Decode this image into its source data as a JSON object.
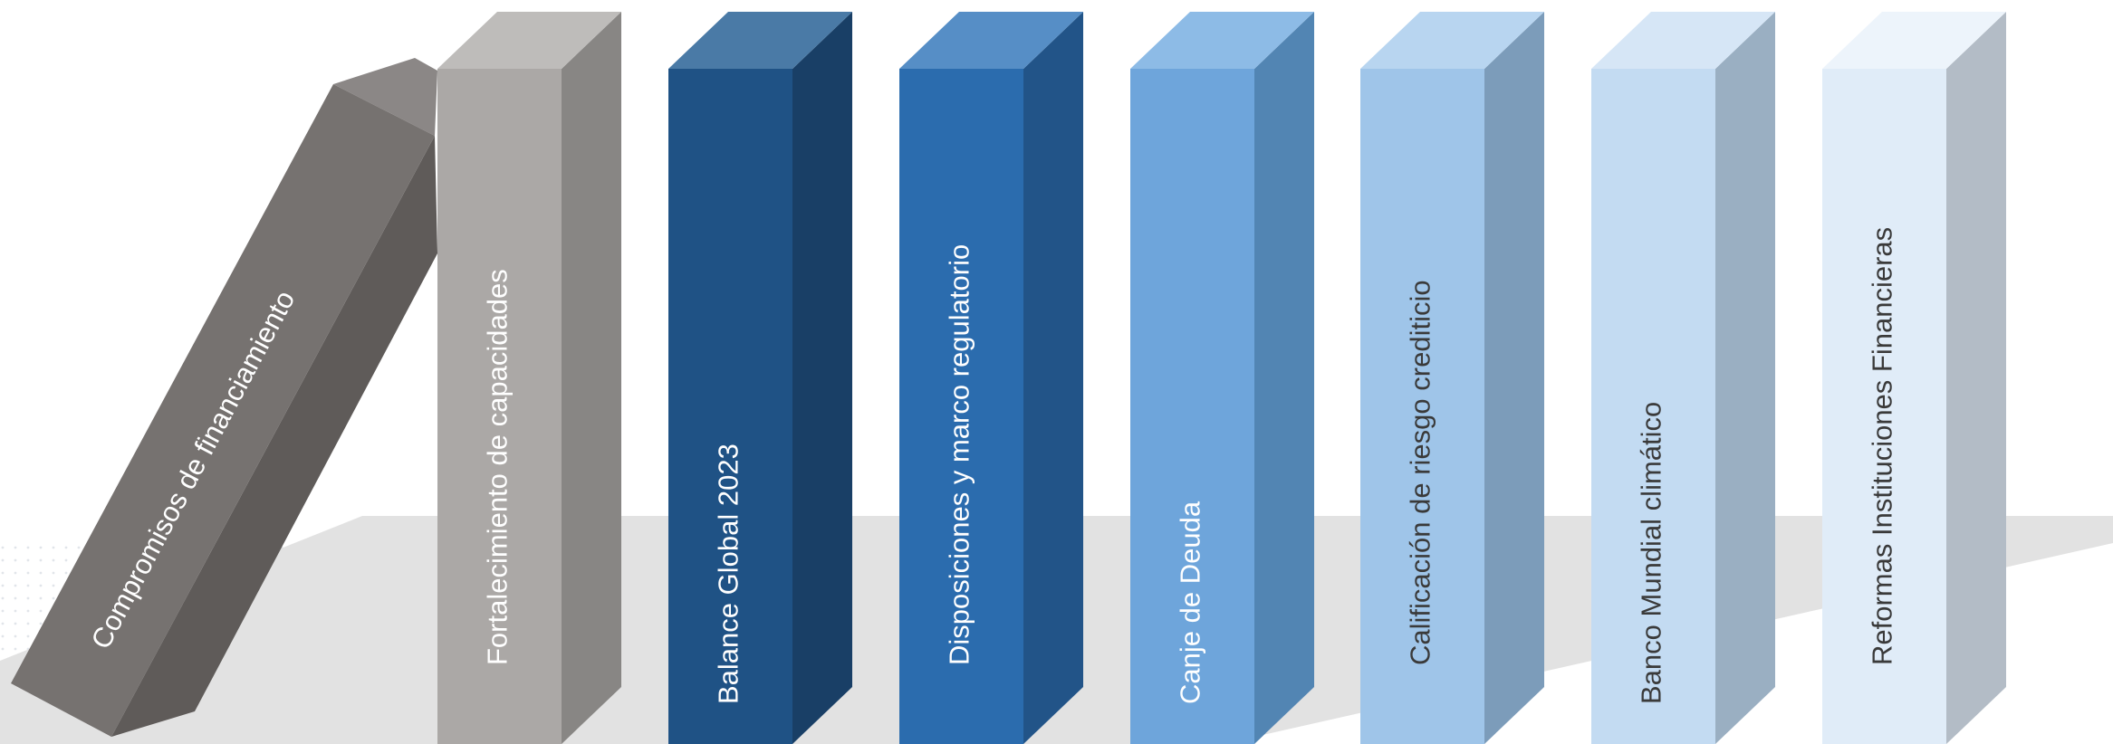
{
  "dominoes": [
    {
      "label": "Compromisos de financiamiento",
      "front": "#767270",
      "side": "#5f5b59",
      "top": "#8b8786",
      "text_color": "#ffffff"
    },
    {
      "label": "Fortalecimiento de capacidades",
      "front": "#aba8a6",
      "side": "#888684",
      "top": "#bebcba",
      "text_color": "#ffffff"
    },
    {
      "label": "Balance Global 2023",
      "front": "#1f5285",
      "side": "#193f66",
      "top": "#4a7aa6",
      "text_color": "#ffffff"
    },
    {
      "label": "Disposiciones y marco regulatorio",
      "front": "#2b6cae",
      "side": "#225488",
      "top": "#568ec6",
      "text_color": "#ffffff"
    },
    {
      "label": "Canje de Deuda",
      "front": "#6ea5db",
      "side": "#5285b3",
      "top": "#8dbbe6",
      "text_color": "#ffffff"
    },
    {
      "label": "Calificación de riesgo crediticio",
      "front": "#9fc5e9",
      "side": "#7c9cba",
      "top": "#b8d5f0",
      "text_color": "#3a3a3a"
    },
    {
      "label": "Banco Mundial climático",
      "front": "#c3dbf2",
      "side": "#9aafc2",
      "top": "#d6e6f6",
      "text_color": "#3a3a3a"
    },
    {
      "label": "Reformas Instituciones Financieras",
      "front": "#e0ecf8",
      "side": "#b3bcc6",
      "top": "#edf4fb",
      "text_color": "#3a3a3a"
    }
  ]
}
